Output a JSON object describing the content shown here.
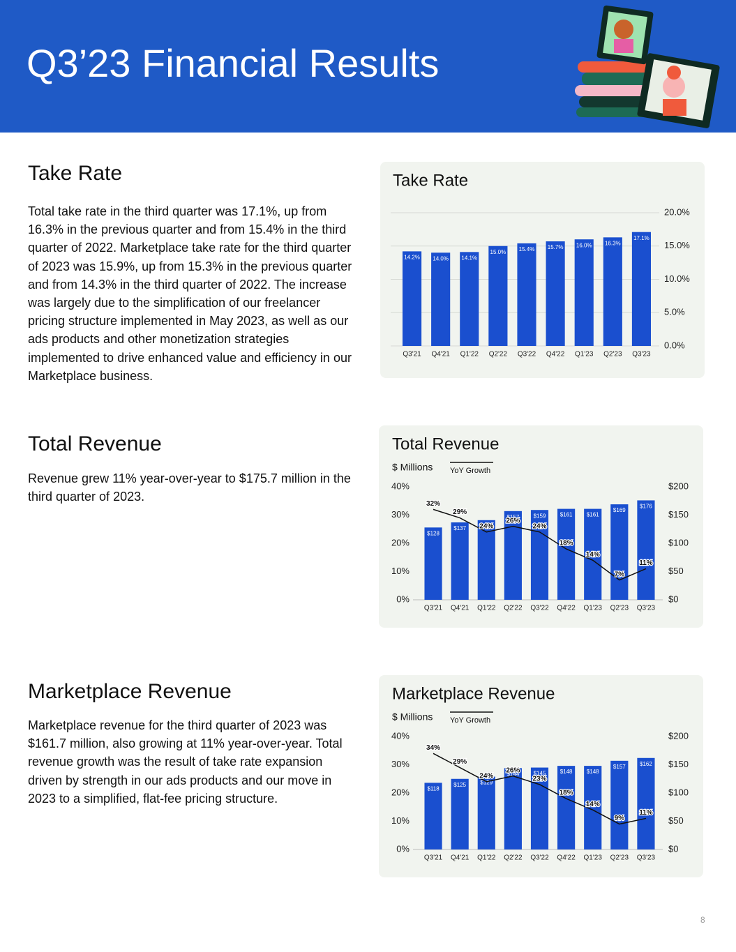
{
  "header": {
    "title": "Q3’23 Financial Results"
  },
  "sections": [
    {
      "heading": "Take Rate",
      "text": "Total take rate in the third quarter was 17.1%, up from 16.3% in the previous quarter and from 15.4% in the third quarter of 2022. Marketplace take rate for the third quarter of 2023 was 15.9%, up from 15.3% in the previous quarter and from 14.3% in the third quarter of 2022. The increase was largely due to the simplification of our freelancer pricing structure implemented in May 2023, as well as our ads products and other monetization strategies implemented to drive enhanced value and efficiency in our Marketplace business."
    },
    {
      "heading": "Total Revenue",
      "text": "Revenue grew 11% year-over-year to $175.7 million in the third quarter of 2023."
    },
    {
      "heading": "Marketplace Revenue",
      "text": "Marketplace revenue for the third quarter of 2023 was $161.7 million, also growing at 11% year-over-year. Total revenue growth was the result of take rate expansion driven by strength in our ads products and our move in 2023 to a simplified, flat-fee pricing structure."
    }
  ],
  "chart_data": [
    {
      "type": "bar",
      "title": "Take Rate",
      "categories": [
        "Q3'21",
        "Q4'21",
        "Q1'22",
        "Q2'22",
        "Q3'22",
        "Q4'22",
        "Q1'23",
        "Q2'23",
        "Q3'23"
      ],
      "series": [
        {
          "color": "#1a4fcf",
          "values": [
            14.2,
            14.0,
            14.1,
            15.0,
            15.4,
            15.7,
            16.0,
            16.3,
            17.1
          ],
          "value_labels": [
            "14.2%",
            "14.0%",
            "14.1%",
            "15.0%",
            "15.4%",
            "15.7%",
            "16.0%",
            "16.3%",
            "17.1%"
          ]
        }
      ],
      "ylim": [
        0,
        20
      ],
      "yticks": [
        {
          "value": 0,
          "label": "0.0%"
        },
        {
          "value": 5,
          "label": "5.0%"
        },
        {
          "value": 10,
          "label": "10.0%"
        },
        {
          "value": 15,
          "label": "15.0%"
        },
        {
          "value": 20,
          "label": "20.0%"
        }
      ],
      "grid": true
    },
    {
      "type": "bar+line",
      "title": "Total Revenue",
      "subtitle": "$ Millions",
      "categories": [
        "Q3'21",
        "Q4'21",
        "Q1'22",
        "Q2'22",
        "Q3'22",
        "Q4'22",
        "Q1'23",
        "Q2'23",
        "Q3'23"
      ],
      "series": [
        {
          "type": "bar",
          "axis": "y2",
          "color": "#1a4fcf",
          "values": [
            128,
            137,
            141,
            157,
            159,
            161,
            161,
            169,
            176
          ],
          "value_labels": [
            "$128",
            "$137",
            "$141",
            "$157",
            "$159",
            "$161",
            "$161",
            "$169",
            "$176"
          ]
        },
        {
          "type": "line",
          "name": "YoY Growth",
          "color": "#111111",
          "values": [
            32,
            29,
            24,
            26,
            24,
            18,
            14,
            7,
            11
          ],
          "value_labels": [
            "32%",
            "29%",
            "24%",
            "26%",
            "24%",
            "18%",
            "14%",
            "7%",
            "11%"
          ]
        }
      ],
      "ylim": [
        0,
        40
      ],
      "yticks": [
        {
          "value": 0,
          "label": "0%"
        },
        {
          "value": 10,
          "label": "10%"
        },
        {
          "value": 20,
          "label": "20%"
        },
        {
          "value": 30,
          "label": "30%"
        },
        {
          "value": 40,
          "label": "40%"
        }
      ],
      "y2lim": [
        0,
        200
      ],
      "y2ticks": [
        {
          "value": 0,
          "label": "$0"
        },
        {
          "value": 50,
          "label": "$50"
        },
        {
          "value": 100,
          "label": "$100"
        },
        {
          "value": 150,
          "label": "$150"
        },
        {
          "value": 200,
          "label": "$200"
        }
      ],
      "grid": false
    },
    {
      "type": "bar+line",
      "title": "Marketplace Revenue",
      "subtitle": "$ Millions",
      "categories": [
        "Q3'21",
        "Q4'21",
        "Q1'22",
        "Q2'22",
        "Q3'22",
        "Q4'22",
        "Q1'23",
        "Q2'23",
        "Q3'23"
      ],
      "series": [
        {
          "type": "bar",
          "axis": "y2",
          "color": "#1a4fcf",
          "values": [
            118,
            125,
            129,
            144,
            145,
            148,
            148,
            157,
            162
          ],
          "value_labels": [
            "$118",
            "$125",
            "$129",
            "$144",
            "$145",
            "$148",
            "$148",
            "$157",
            "$162"
          ]
        },
        {
          "type": "line",
          "name": "YoY Growth",
          "color": "#111111",
          "values": [
            34,
            29,
            24,
            26,
            23,
            18,
            14,
            9,
            11
          ],
          "value_labels": [
            "34%",
            "29%",
            "24%",
            "26%",
            "23%",
            "18%",
            "14%",
            "9%",
            "11%"
          ]
        }
      ],
      "ylim": [
        0,
        40
      ],
      "yticks": [
        {
          "value": 0,
          "label": "0%"
        },
        {
          "value": 10,
          "label": "10%"
        },
        {
          "value": 20,
          "label": "20%"
        },
        {
          "value": 30,
          "label": "30%"
        },
        {
          "value": 40,
          "label": "40%"
        }
      ],
      "y2lim": [
        0,
        200
      ],
      "y2ticks": [
        {
          "value": 0,
          "label": "$0"
        },
        {
          "value": 50,
          "label": "$50"
        },
        {
          "value": 100,
          "label": "$100"
        },
        {
          "value": 150,
          "label": "$150"
        },
        {
          "value": 200,
          "label": "$200"
        }
      ],
      "grid": false
    }
  ],
  "page_number": "8"
}
